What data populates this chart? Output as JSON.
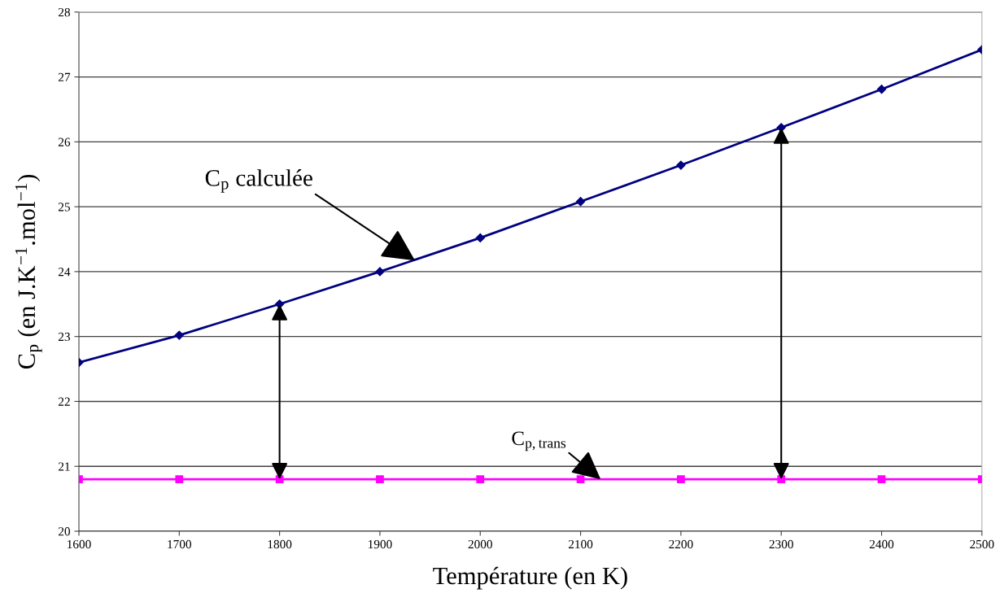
{
  "chart_data": {
    "type": "line",
    "xlabel": "Température (en K)",
    "ylabel": "C$_{p}$ (en J.K$^{−1}$.mol$^{−1}$)",
    "x": [
      1600,
      1700,
      1800,
      1900,
      2000,
      2100,
      2200,
      2300,
      2400,
      2500
    ],
    "series": [
      {
        "color": "#000080",
        "marker": "diamond",
        "values": [
          22.6,
          23.02,
          23.5,
          24.0,
          24.52,
          25.08,
          25.64,
          26.22,
          26.81,
          27.42
        ]
      },
      {
        "color": "#ff00ff",
        "marker": "square",
        "values": [
          20.8,
          20.8,
          20.8,
          20.8,
          20.8,
          20.8,
          20.8,
          20.8,
          20.8,
          20.8
        ]
      }
    ],
    "annotations": [
      {
        "text": "C$_{p}$ calculée",
        "x": 1935,
        "y": 24.17
      },
      {
        "text": "C$_{p,trans}$",
        "x": 2120,
        "y": 20.8
      }
    ],
    "xlim": [
      1600,
      2500
    ],
    "xticks": [
      1600,
      1700,
      1800,
      1900,
      2000,
      2100,
      2200,
      2300,
      2400,
      2500
    ],
    "ylim": [
      20,
      28
    ],
    "yticks": [
      20,
      21,
      22,
      23,
      24,
      25,
      26,
      27,
      28
    ],
    "grid": "y",
    "legend": false
  }
}
